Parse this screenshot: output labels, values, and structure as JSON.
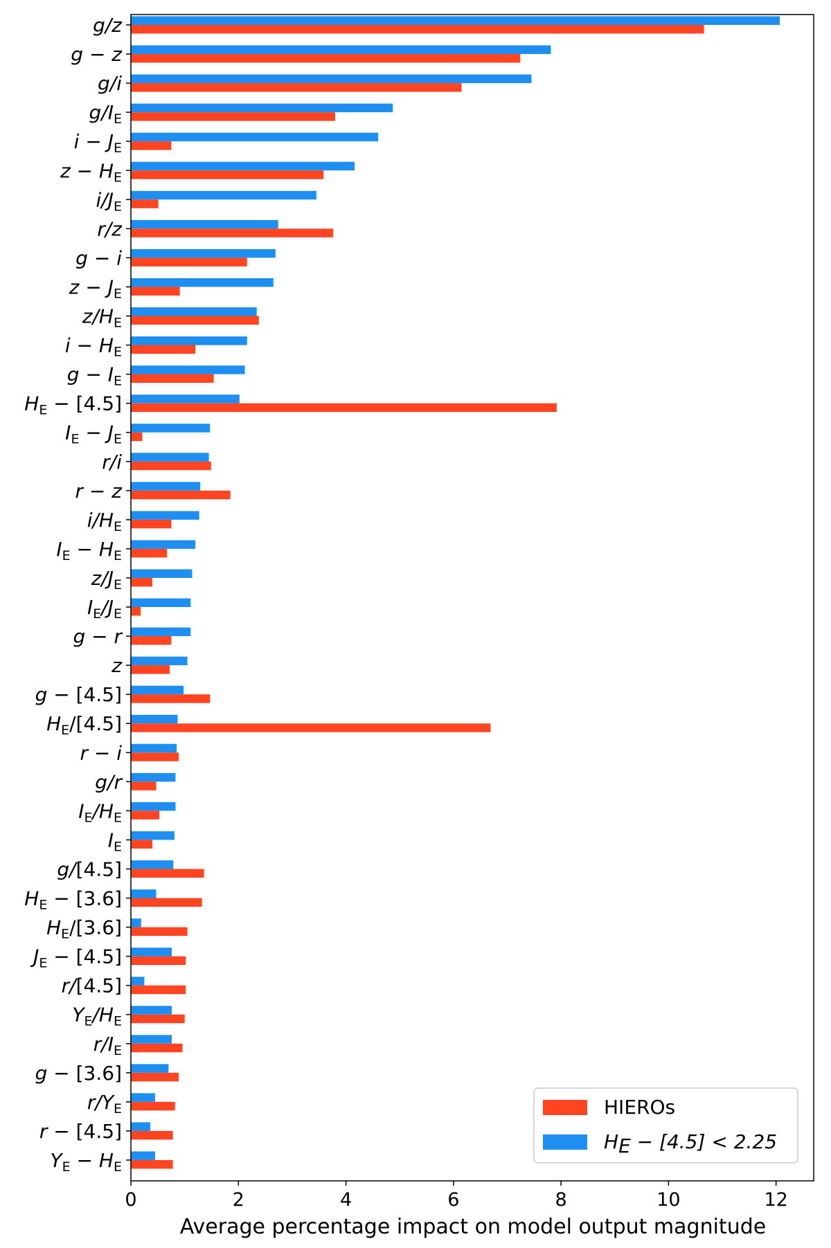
{
  "chart_data": {
    "type": "bar",
    "orientation": "horizontal",
    "xlabel": "Average percentage impact on model output magnitude",
    "ylabel": "",
    "xlim": [
      0,
      12.7
    ],
    "xticks": [
      0,
      2,
      4,
      6,
      8,
      10,
      12
    ],
    "legend_position": "bottom-right",
    "grid": false,
    "categories": [
      "g/z",
      "g − z",
      "g/i",
      "g/I_E",
      "i − J_E",
      "z − H_E",
      "i/J_E",
      "r/z",
      "g − i",
      "z − J_E",
      "z/H_E",
      "i − H_E",
      "g − I_E",
      "H_E − [4.5]",
      "I_E − J_E",
      "r/i",
      "r − z",
      "i/H_E",
      "I_E − H_E",
      "z/J_E",
      "I_E/J_E",
      "g − r",
      "z",
      "g − [4.5]",
      "H_E/[4.5]",
      "r − i",
      "g/r",
      "I_E/H_E",
      "I_E",
      "g/[4.5]",
      "H_E − [3.6]",
      "H_E/[3.6]",
      "J_E − [4.5]",
      "r/[4.5]",
      "Y_E/H_E",
      "r/I_E",
      "g − [3.6]",
      "r/Y_E",
      "r − [4.5]",
      "Y_E − H_E"
    ],
    "series": [
      {
        "name": "H_E − [4.5] < 2.25",
        "color": "#1f8ef1",
        "values": [
          12.07,
          7.81,
          7.45,
          4.87,
          4.6,
          4.16,
          3.45,
          2.74,
          2.69,
          2.65,
          2.34,
          2.16,
          2.12,
          2.02,
          1.47,
          1.45,
          1.29,
          1.27,
          1.2,
          1.14,
          1.11,
          1.11,
          1.05,
          0.98,
          0.87,
          0.85,
          0.83,
          0.83,
          0.81,
          0.79,
          0.47,
          0.19,
          0.76,
          0.25,
          0.76,
          0.76,
          0.7,
          0.45,
          0.36,
          0.45
        ]
      },
      {
        "name": "HIEROs",
        "color": "#ff4422",
        "values": [
          10.66,
          7.24,
          6.15,
          3.8,
          0.75,
          3.58,
          0.51,
          3.76,
          2.16,
          0.91,
          2.38,
          1.2,
          1.54,
          7.92,
          0.21,
          1.49,
          1.85,
          0.75,
          0.67,
          0.4,
          0.18,
          0.75,
          0.72,
          1.47,
          6.69,
          0.89,
          0.47,
          0.53,
          0.4,
          1.36,
          1.32,
          1.05,
          1.02,
          1.02,
          1.0,
          0.96,
          0.89,
          0.82,
          0.78,
          0.78
        ]
      }
    ],
    "legend": [
      {
        "label": "HIEROs",
        "color": "#ff4422"
      },
      {
        "label": "H_E − [4.5] < 2.25",
        "color": "#1f8ef1"
      }
    ]
  }
}
